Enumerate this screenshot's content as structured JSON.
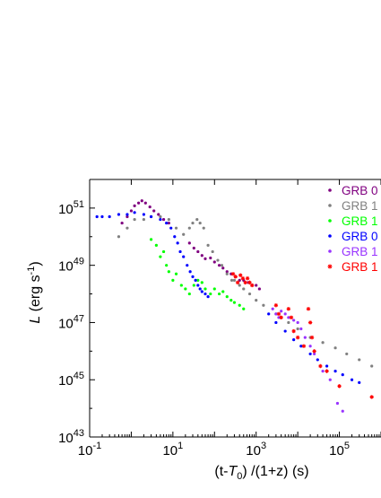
{
  "chart_data": {
    "type": "scatter",
    "x_scale": "log",
    "y_scale": "log",
    "xlim": [
      0.1,
      1000000
    ],
    "ylim": [
      1e+43,
      1e+52
    ],
    "x_ticks": [
      {
        "value": 0.1,
        "base": "10",
        "exp": "-1"
      },
      {
        "value": 10,
        "base": "10",
        "exp": "1"
      },
      {
        "value": 1000,
        "base": "10",
        "exp": "3"
      },
      {
        "value": 100000,
        "base": "10",
        "exp": "5"
      }
    ],
    "y_ticks": [
      {
        "value": 1e+43,
        "base": "10",
        "exp": "43"
      },
      {
        "value": 1e+45,
        "base": "10",
        "exp": "45"
      },
      {
        "value": 1e+47,
        "base": "10",
        "exp": "47"
      },
      {
        "value": 1e+49,
        "base": "10",
        "exp": "49"
      },
      {
        "value": 1e+51,
        "base": "10",
        "exp": "51"
      }
    ],
    "xlabel": "(t-T0) /(1+z) (s)",
    "xlabel_parts": {
      "open": "(t-",
      "T": "T",
      "sub": "0",
      "close": ") /(1+z) (s)"
    },
    "ylabel": "L (erg s-1)",
    "ylabel_parts": {
      "L": "L",
      "unit_open": " (erg s",
      "sup": "-1",
      "unit_close": ")"
    },
    "grid": false,
    "legend_position": "top-right",
    "series": [
      {
        "name": "GRB 0",
        "color": "#800080",
        "marker": "dot",
        "points": [
          [
            0.6,
            3e+50
          ],
          [
            0.8,
            5e+50
          ],
          [
            1.0,
            8e+50
          ],
          [
            1.2,
            1.2e+51
          ],
          [
            1.5,
            1.5e+51
          ],
          [
            1.8,
            1.8e+51
          ],
          [
            2.2,
            1.5e+51
          ],
          [
            2.8,
            1.1e+51
          ],
          [
            3.5,
            8e+50
          ],
          [
            4.5,
            6e+50
          ],
          [
            6,
            4e+50
          ],
          [
            8,
            3e+50
          ],
          [
            25,
            6e+49
          ],
          [
            32,
            4e+49
          ],
          [
            40,
            3e+49
          ],
          [
            50,
            2.2e+49
          ],
          [
            60,
            1.7e+49
          ],
          [
            80,
            1.8e+49
          ],
          [
            100,
            1.3e+49
          ],
          [
            130,
            1e+49
          ],
          [
            160,
            8e+48
          ],
          [
            200,
            6e+48
          ],
          [
            250,
            5e+48
          ],
          [
            320,
            4e+48
          ],
          [
            400,
            3e+48
          ],
          [
            500,
            3e+48
          ],
          [
            650,
            2.5e+48
          ],
          [
            800,
            2e+48
          ],
          [
            1000,
            2e+48
          ],
          [
            1200,
            1.5e+48
          ]
        ]
      },
      {
        "name": "GRB 1",
        "color": "#808080",
        "marker": "dot",
        "points": [
          [
            0.5,
            1e+50
          ],
          [
            0.8,
            2e+50
          ],
          [
            1.2,
            4e+50
          ],
          [
            2,
            4e+50
          ],
          [
            3,
            5e+50
          ],
          [
            5,
            5e+50
          ],
          [
            8,
            4e+50
          ],
          [
            12,
            2e+50
          ],
          [
            18,
            1.2e+50
          ],
          [
            25,
            2e+50
          ],
          [
            30,
            3e+50
          ],
          [
            38,
            4e+50
          ],
          [
            45,
            3e+50
          ],
          [
            55,
            2e+50
          ],
          [
            70,
            5e+49
          ],
          [
            90,
            3e+49
          ],
          [
            120,
            1.5e+49
          ],
          [
            150,
            1e+49
          ],
          [
            200,
            5e+48
          ],
          [
            260,
            3e+48
          ],
          [
            300,
            3e+48
          ],
          [
            400,
            2e+48
          ],
          [
            500,
            1.5e+48
          ],
          [
            700,
            1e+48
          ],
          [
            1000,
            6e+47
          ],
          [
            1500,
            4e+47
          ],
          [
            3000,
            2e+47
          ],
          [
            6000,
            1e+47
          ],
          [
            10000,
            6e+46
          ],
          [
            20000,
            3e+46
          ],
          [
            40000,
            2e+46
          ],
          [
            80000,
            1.3e+46
          ],
          [
            150000,
            8e+45
          ],
          [
            300000,
            5e+45
          ],
          [
            600000,
            3e+45
          ]
        ]
      },
      {
        "name": "GRB 1",
        "color": "#00ff00",
        "marker": "dot",
        "points": [
          [
            3,
            8e+49
          ],
          [
            4,
            5e+49
          ],
          [
            5,
            2e+49
          ],
          [
            6,
            3e+49
          ],
          [
            7,
            1e+49
          ],
          [
            8,
            6e+48
          ],
          [
            10,
            3e+48
          ],
          [
            12,
            5e+48
          ],
          [
            16,
            2e+48
          ],
          [
            20,
            1.5e+48
          ],
          [
            25,
            1e+48
          ],
          [
            32,
            2e+48
          ],
          [
            40,
            3e+48
          ],
          [
            50,
            2.5e+48
          ],
          [
            60,
            1.5e+48
          ],
          [
            80,
            1e+48
          ],
          [
            100,
            1.5e+48
          ],
          [
            130,
            1e+48
          ],
          [
            160,
            1.2e+48
          ],
          [
            200,
            8e+47
          ],
          [
            250,
            6e+47
          ],
          [
            300,
            5e+47
          ],
          [
            400,
            4e+47
          ],
          [
            500,
            3e+47
          ]
        ]
      },
      {
        "name": "GRB  0",
        "color": "#0000ff",
        "marker": "dot",
        "points": [
          [
            0.15,
            5e+50
          ],
          [
            0.2,
            5e+50
          ],
          [
            0.3,
            5e+50
          ],
          [
            0.5,
            6e+50
          ],
          [
            0.8,
            6e+50
          ],
          [
            1.2,
            7e+50
          ],
          [
            2,
            6e+50
          ],
          [
            3,
            5e+50
          ],
          [
            5,
            4e+50
          ],
          [
            7,
            3e+50
          ],
          [
            9,
            2e+50
          ],
          [
            11,
            1e+50
          ],
          [
            13,
            6e+49
          ],
          [
            15,
            3e+49
          ],
          [
            18,
            2e+49
          ],
          [
            22,
            1e+49
          ],
          [
            26,
            6e+48
          ],
          [
            30,
            4e+48
          ],
          [
            35,
            3e+48
          ],
          [
            40,
            2e+48
          ],
          [
            45,
            1.5e+48
          ],
          [
            50,
            1.2e+48
          ],
          [
            60,
            1e+48
          ],
          [
            70,
            8e+47
          ],
          [
            2000,
            2e+47
          ],
          [
            3000,
            1e+47
          ],
          [
            5000,
            5e+46
          ],
          [
            8000,
            2.5e+46
          ],
          [
            12000,
            1.5e+46
          ],
          [
            20000,
            8e+45
          ],
          [
            30000,
            5e+45
          ],
          [
            50000,
            3e+45
          ],
          [
            80000,
            2e+45
          ],
          [
            120000,
            1.5e+45
          ],
          [
            200000,
            1e+45
          ],
          [
            300000,
            8e+44
          ]
        ]
      },
      {
        "name": "GRB 1",
        "color": "#9933ff",
        "marker": "dot",
        "points": [
          [
            2500,
            3e+47
          ],
          [
            3000,
            2e+47
          ],
          [
            3500,
            1.5e+47
          ],
          [
            4000,
            2.5e+47
          ],
          [
            5000,
            2e+47
          ],
          [
            6000,
            1.5e+47
          ],
          [
            8000,
            1.2e+47
          ],
          [
            10000,
            1e+47
          ],
          [
            12000,
            6e+46
          ],
          [
            15000,
            3e+46
          ],
          [
            20000,
            1.5e+46
          ],
          [
            25000,
            8e+45
          ],
          [
            40000,
            2e+45
          ],
          [
            60000,
            1e+45
          ],
          [
            90000,
            1.5e+44
          ],
          [
            120000,
            8e+43
          ]
        ]
      },
      {
        "name": "GRB 1",
        "color": "#ff0000",
        "marker": "star",
        "points": [
          [
            280,
            5e+48
          ],
          [
            320,
            4e+48
          ],
          [
            360,
            2.5e+48
          ],
          [
            420,
            4.5e+48
          ],
          [
            480,
            3.5e+48
          ],
          [
            550,
            2.5e+48
          ],
          [
            620,
            3.5e+48
          ],
          [
            700,
            2.5e+48
          ],
          [
            800,
            2e+48
          ],
          [
            3000,
            4e+47
          ],
          [
            3500,
            2e+47
          ],
          [
            4000,
            1.5e+47
          ],
          [
            6000,
            3e+47
          ],
          [
            7000,
            1.5e+47
          ],
          [
            8000,
            5e+46
          ],
          [
            10000,
            3e+46
          ],
          [
            14000,
            1.5e+46
          ],
          [
            18000,
            3e+47
          ],
          [
            20000,
            1e+47
          ],
          [
            22000,
            3e+46
          ],
          [
            25000,
            1e+46
          ],
          [
            35000,
            3e+45
          ],
          [
            50000,
            2e+45
          ],
          [
            100000,
            6e+44
          ],
          [
            600000,
            2.5e+44
          ]
        ]
      }
    ]
  }
}
